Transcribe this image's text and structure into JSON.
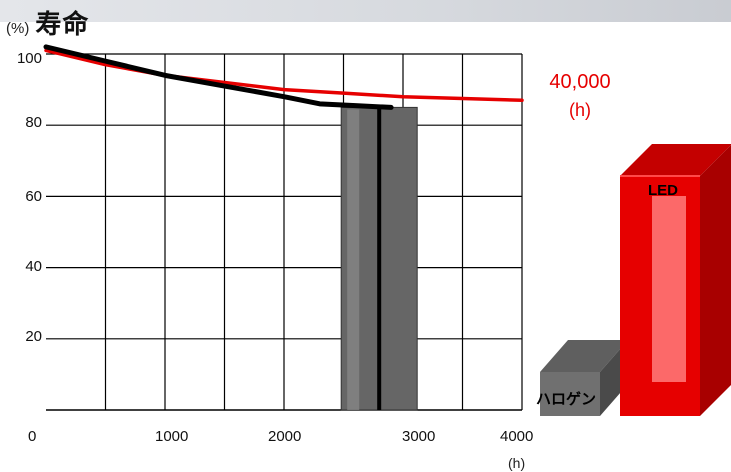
{
  "chart_data": {
    "type": "line",
    "title": "寿命",
    "ylabel": "(%)",
    "xlabel": "(h)",
    "xlim": [
      0,
      4000
    ],
    "ylim": [
      0,
      100
    ],
    "yticks": [
      "20",
      "40",
      "60",
      "80",
      "100"
    ],
    "xticks": [
      "0",
      "1000",
      "2000",
      "3000",
      "4000"
    ],
    "grid": true,
    "series": [
      {
        "color": "#e60000",
        "x": [
          0,
          500,
          1000,
          1500,
          2000,
          2500,
          3000,
          3500,
          4000
        ],
        "y": [
          101,
          97,
          94,
          92,
          90,
          89,
          88,
          87.5,
          87
        ]
      },
      {
        "color": "#000000",
        "x": [
          0,
          500,
          1000,
          1500,
          2000,
          2300,
          2600,
          2900
        ],
        "y": [
          102,
          98,
          94,
          91,
          88,
          86,
          85.5,
          85
        ]
      }
    ],
    "bars": [
      {
        "x": 2800,
        "y": 85,
        "color": "#666666"
      }
    ],
    "annotations": {
      "led_life_value": "40,000",
      "led_life_unit": "(h)"
    },
    "comparison_3d": [
      {
        "name": "LED",
        "color": "#e60000"
      },
      {
        "name": "ハロゲン",
        "color": "#707070"
      }
    ]
  }
}
